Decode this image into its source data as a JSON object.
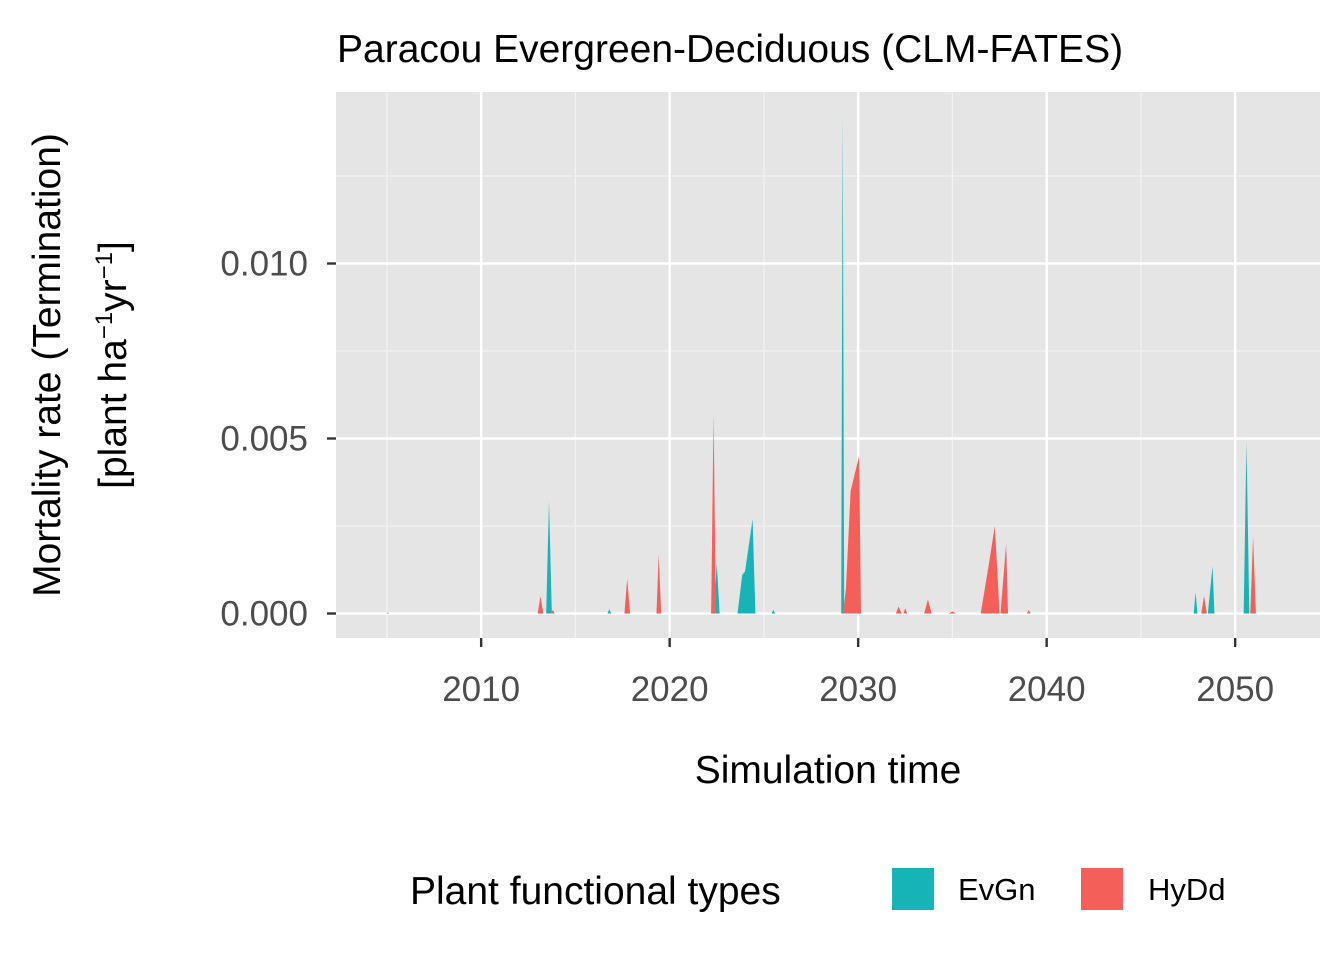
{
  "chart_data": {
    "type": "area",
    "title": "Paracou Evergreen-Deciduous (CLM-FATES)",
    "xlabel": "Simulation time",
    "ylabel_line1": "Mortality rate (Termination)",
    "ylabel_line2_parts": [
      "[plant ha",
      "−1",
      "yr",
      "−1",
      "]"
    ],
    "xlim": [
      2002.3,
      2054.5
    ],
    "ylim": [
      -0.0007,
      0.0149
    ],
    "x_ticks": [
      2010,
      2020,
      2030,
      2040,
      2050
    ],
    "x_tick_labels": [
      "2010",
      "2020",
      "2030",
      "2040",
      "2050"
    ],
    "y_ticks": [
      0.0,
      0.005,
      0.01
    ],
    "y_tick_labels": [
      "0.000",
      "0.005",
      "0.010"
    ],
    "grid": true,
    "legend": {
      "title": "Plant functional types",
      "position": "bottom",
      "entries": [
        "EvGn",
        "HyDd"
      ]
    },
    "series": [
      {
        "name": "EvGn",
        "color": "#17b4b7",
        "points": [
          [
            2005.0,
            0
          ],
          [
            2005.05,
            4e-05
          ],
          [
            2005.1,
            0
          ],
          [
            2013.45,
            0
          ],
          [
            2013.6,
            0.0032
          ],
          [
            2013.75,
            0
          ],
          [
            2016.7,
            0
          ],
          [
            2016.8,
            0.00012
          ],
          [
            2016.9,
            0
          ],
          [
            2022.35,
            0
          ],
          [
            2022.5,
            0.00145
          ],
          [
            2022.65,
            0
          ],
          [
            2023.6,
            0
          ],
          [
            2023.85,
            0.0011
          ],
          [
            2024.0,
            0.0012
          ],
          [
            2024.4,
            0.0027
          ],
          [
            2024.55,
            0
          ],
          [
            2025.4,
            0
          ],
          [
            2025.5,
            0.0001
          ],
          [
            2025.6,
            0
          ],
          [
            2029.1,
            0
          ],
          [
            2029.18,
            0.0143
          ],
          [
            2029.26,
            0
          ],
          [
            2047.8,
            0
          ],
          [
            2047.9,
            0.0006
          ],
          [
            2048.0,
            0
          ],
          [
            2048.55,
            0
          ],
          [
            2048.8,
            0.00135
          ],
          [
            2048.9,
            0
          ],
          [
            2050.45,
            0
          ],
          [
            2050.6,
            0.0049
          ],
          [
            2050.75,
            0
          ]
        ]
      },
      {
        "name": "HyDd",
        "color": "#f55f5a",
        "points": [
          [
            2013.0,
            0
          ],
          [
            2013.15,
            0.0005
          ],
          [
            2013.3,
            0
          ],
          [
            2013.7,
            0
          ],
          [
            2013.8,
            0.0001
          ],
          [
            2013.9,
            0
          ],
          [
            2017.6,
            0
          ],
          [
            2017.75,
            0.001
          ],
          [
            2017.9,
            0
          ],
          [
            2019.3,
            0
          ],
          [
            2019.42,
            0.0017
          ],
          [
            2019.55,
            0
          ],
          [
            2022.2,
            0
          ],
          [
            2022.33,
            0.0057
          ],
          [
            2022.45,
            0
          ],
          [
            2029.2,
            0
          ],
          [
            2029.35,
            0.0007
          ],
          [
            2029.6,
            0.0035
          ],
          [
            2030.05,
            0.0045
          ],
          [
            2030.15,
            0
          ],
          [
            2032.0,
            0
          ],
          [
            2032.15,
            0.0002
          ],
          [
            2032.3,
            0
          ],
          [
            2032.4,
            0
          ],
          [
            2032.5,
            0.00015
          ],
          [
            2032.6,
            0
          ],
          [
            2033.5,
            0
          ],
          [
            2033.7,
            0.0004
          ],
          [
            2033.9,
            0
          ],
          [
            2034.8,
            0
          ],
          [
            2035.0,
            6e-05
          ],
          [
            2035.2,
            0
          ],
          [
            2036.5,
            0
          ],
          [
            2036.9,
            0.0013
          ],
          [
            2037.25,
            0.0025
          ],
          [
            2037.5,
            0
          ],
          [
            2037.55,
            0
          ],
          [
            2037.85,
            0.002
          ],
          [
            2037.95,
            0
          ],
          [
            2038.95,
            0
          ],
          [
            2039.05,
            0.0001
          ],
          [
            2039.15,
            0
          ],
          [
            2048.2,
            0
          ],
          [
            2048.35,
            0.0005
          ],
          [
            2048.5,
            0
          ],
          [
            2050.8,
            0
          ],
          [
            2050.95,
            0.0022
          ],
          [
            2051.1,
            0
          ]
        ]
      }
    ]
  }
}
